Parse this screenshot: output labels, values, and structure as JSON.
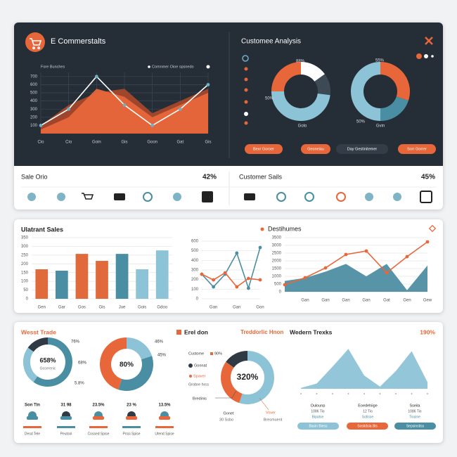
{
  "chart_data": [
    {
      "type": "area",
      "title": "E Commerstalts",
      "categories": [
        "Cio",
        "Cio",
        "Goin",
        "Gis",
        "Goon",
        "Gat",
        "Gis"
      ],
      "series": [
        {
          "color": "#a5472c",
          "style": "area",
          "values": [
            100,
            350,
            500,
            550,
            250,
            400,
            550
          ]
        },
        {
          "name": "Fore Bunches",
          "color": "#e8673a",
          "style": "area",
          "values": [
            50,
            200,
            550,
            450,
            200,
            350,
            500
          ]
        },
        {
          "name": "Comnmer Oioe spsnedo",
          "color": "#ffffff",
          "style": "line",
          "markers": true,
          "marker_color": "#6fb0c4",
          "values": [
            100,
            300,
            700,
            350,
            100,
            300,
            600
          ]
        }
      ],
      "ylim": [
        0,
        750
      ],
      "yticks": [
        100,
        200,
        300,
        400,
        500,
        600,
        700
      ],
      "grid": true,
      "vgrid": true
    },
    {
      "type": "donut",
      "values": [
        15,
        12,
        48,
        25
      ],
      "colors": [
        "#ffffff",
        "#3d4954",
        "#8cc3d6",
        "#e8673a"
      ]
    },
    {
      "type": "donut",
      "values": [
        30,
        20,
        50
      ],
      "colors": [
        "#e8673a",
        "#4a8ea3",
        "#8cc3d6"
      ]
    },
    {
      "type": "bar",
      "title": "Ulatrant Sales",
      "categories": [
        "Gen",
        "Gar",
        "Gos",
        "Gis",
        "Jue",
        "Gois",
        "Gdoo"
      ],
      "values": [
        169,
        161,
        257,
        217,
        257,
        169,
        277
      ],
      "colors": [
        "#e06a3b",
        "#4a8ea3",
        "#e06a3b",
        "#e06a3b",
        "#4a8ea3",
        "#8cc3d6",
        "#8cc3d6"
      ],
      "ylim": [
        0,
        350
      ],
      "yticks": [
        0,
        50,
        100,
        150,
        200,
        250,
        300,
        350
      ],
      "grid": true
    },
    {
      "type": "line",
      "categories": [
        null,
        "Gan",
        null,
        "Gan",
        null,
        "Gon"
      ],
      "series": [
        {
          "color": "#4a8ea3",
          "style": "line",
          "markers": true,
          "values": [
            256,
            124,
            256,
            476,
            110,
            534
          ]
        },
        {
          "color": "#e8673a",
          "style": "line",
          "markers": true,
          "values": [
            256,
            197,
            271,
            124,
            212,
            197
          ]
        }
      ],
      "ylim": [
        0,
        600
      ],
      "yticks": [
        0,
        100,
        200,
        300,
        400,
        500,
        600
      ],
      "grid": true
    },
    {
      "type": "area",
      "title": "Destihumes",
      "categories": [
        null,
        "Gan",
        "Gan",
        "Gan",
        "Gan",
        "Gat",
        "Gen",
        "Gew"
      ],
      "series": [
        {
          "color": "#4f8ea3",
          "style": "area",
          "values": [
            700,
            900,
            1300,
            1800,
            1000,
            1800,
            100,
            1700
          ]
        },
        {
          "color": "#e8673a",
          "style": "line",
          "markers": true,
          "values": [
            455,
            909,
            1545,
            2409,
            2636,
            1227,
            2273,
            3227
          ]
        }
      ],
      "ylim": [
        0,
        3500
      ],
      "yticks": [
        0,
        500,
        1000,
        1500,
        2000,
        2500,
        3000,
        3500
      ],
      "grid": true
    },
    {
      "type": "donut",
      "values": [
        60,
        25,
        15
      ],
      "colors": [
        "#4a8ea3",
        "#8cc3d6",
        "#2f3a44"
      ]
    },
    {
      "type": "donut",
      "values": [
        20,
        35,
        45
      ],
      "colors": [
        "#8cc3d6",
        "#4a8ea3",
        "#e8673a"
      ]
    },
    {
      "type": "donut",
      "values": [
        55,
        30,
        15
      ],
      "colors": [
        "#8cc3d6",
        "#e8673a",
        "#2f3a44"
      ]
    },
    {
      "type": "area",
      "title": "Wedern Trexks",
      "series": [
        {
          "color": "#8cc3d6",
          "style": "area",
          "values": [
            2,
            12,
            50,
            90,
            30,
            5,
            40,
            85,
            15
          ]
        }
      ],
      "ylim": [
        0,
        100
      ]
    }
  ],
  "ui": {
    "top": {
      "analysis_title": "Customee Analysis",
      "donut_labels": [
        "88%",
        "50%",
        "Golo",
        "55%",
        "50%",
        "Gvin"
      ],
      "buttons": [
        "Bexr Goroer",
        "Geoneiau",
        "Day Gestinitemer",
        "Sorr Gorrer"
      ]
    },
    "strip": {
      "left_title": "Sale Orio",
      "left_value": "42%",
      "right_title": "Customer Sails",
      "right_value": "45%"
    },
    "bottom": {
      "left_title": "Wesst Trade",
      "donut_a": {
        "center": "658%",
        "sub": "Goserenic",
        "labels": [
          "76%",
          "68%",
          "5.8%"
        ]
      },
      "donut_b": {
        "center": "80%",
        "labels": [
          "46%",
          "45%"
        ]
      },
      "stats": [
        {
          "value": "Son Tin",
          "label": "Desd Tele"
        },
        {
          "value": "31 98",
          "label": "Peutsol"
        },
        {
          "value": "23.5%",
          "label": "Cossed Spise"
        },
        {
          "value": "23 %",
          "label": "Prssi Spise"
        },
        {
          "value": "13.5%",
          "label": "Utend Spise"
        }
      ],
      "mid_title": "Erel don",
      "mid_subtitle": "Treddorlic Hnon",
      "donut_c": {
        "center": "320%",
        "labels": [
          "Custome",
          "90%",
          "Gonnat",
          "Spaver",
          "Grobre hrcs",
          "Bredinis",
          "Gonet",
          "Vover",
          "30 Ssbo",
          "Bresmuent"
        ]
      },
      "right_value": "190%",
      "columns": [
        {
          "head": "Oulounp",
          "line1": "1086 Tio",
          "line2": "Bipatse",
          "pill": "Basin Biess"
        },
        {
          "head": "Eoedehiige",
          "line1": "12 Tio",
          "line2": "Sotisse",
          "pill": "Sostidsia Bis"
        },
        {
          "head": "Sseila",
          "line1": "1086 Tio",
          "line2": "Tiosine",
          "pill": "Sepsinstiss"
        }
      ]
    }
  }
}
